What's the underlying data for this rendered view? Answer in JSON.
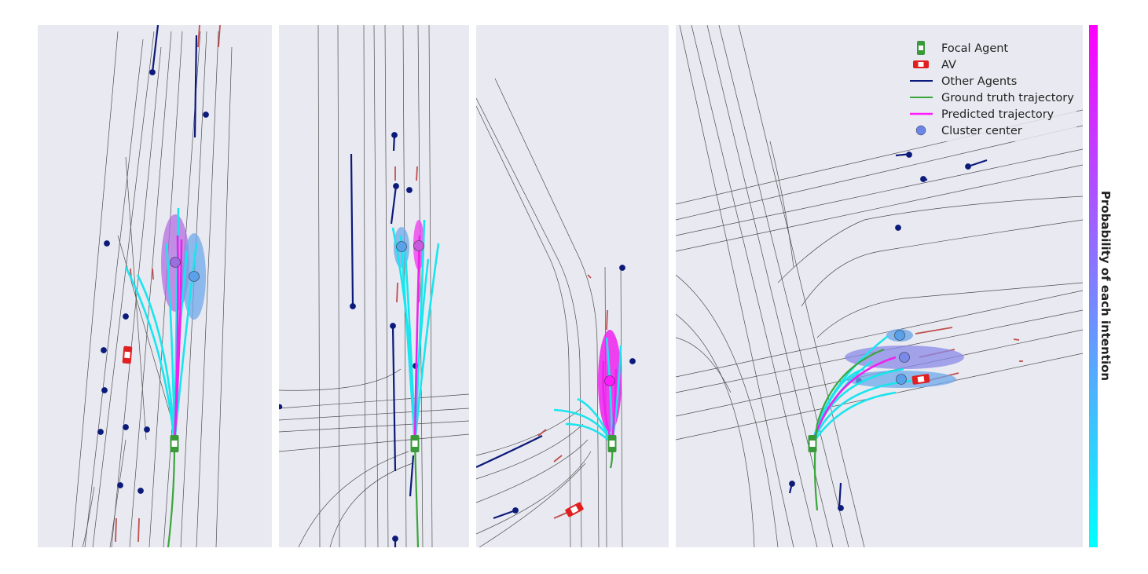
{
  "legend": {
    "items": [
      {
        "label": "Focal Agent",
        "kind": "car",
        "color": "#3a9a3a"
      },
      {
        "label": "AV",
        "kind": "car",
        "color": "#e02020"
      },
      {
        "label": "Other Agents",
        "kind": "line",
        "color": "#0c1a7a"
      },
      {
        "label": "Ground truth trajectory",
        "kind": "line",
        "color": "#3aa63a"
      },
      {
        "label": "Predicted trajectory",
        "kind": "line",
        "color": "#ff1aff"
      },
      {
        "label": "Cluster center",
        "kind": "dot",
        "color": "#6b86e8"
      }
    ]
  },
  "colorbar": {
    "label": "Probability of each intention",
    "color_low": "#00ffff",
    "color_high": "#ff00ff"
  },
  "colors": {
    "background": "#e9e9f1",
    "lane": "#333333",
    "other_agent": "#0c1a7a",
    "arrow": "#c0504d",
    "prediction_cyan": "#19e5ee",
    "prediction_magenta": "#ee22ee",
    "ground_truth": "#3aa63a"
  }
}
